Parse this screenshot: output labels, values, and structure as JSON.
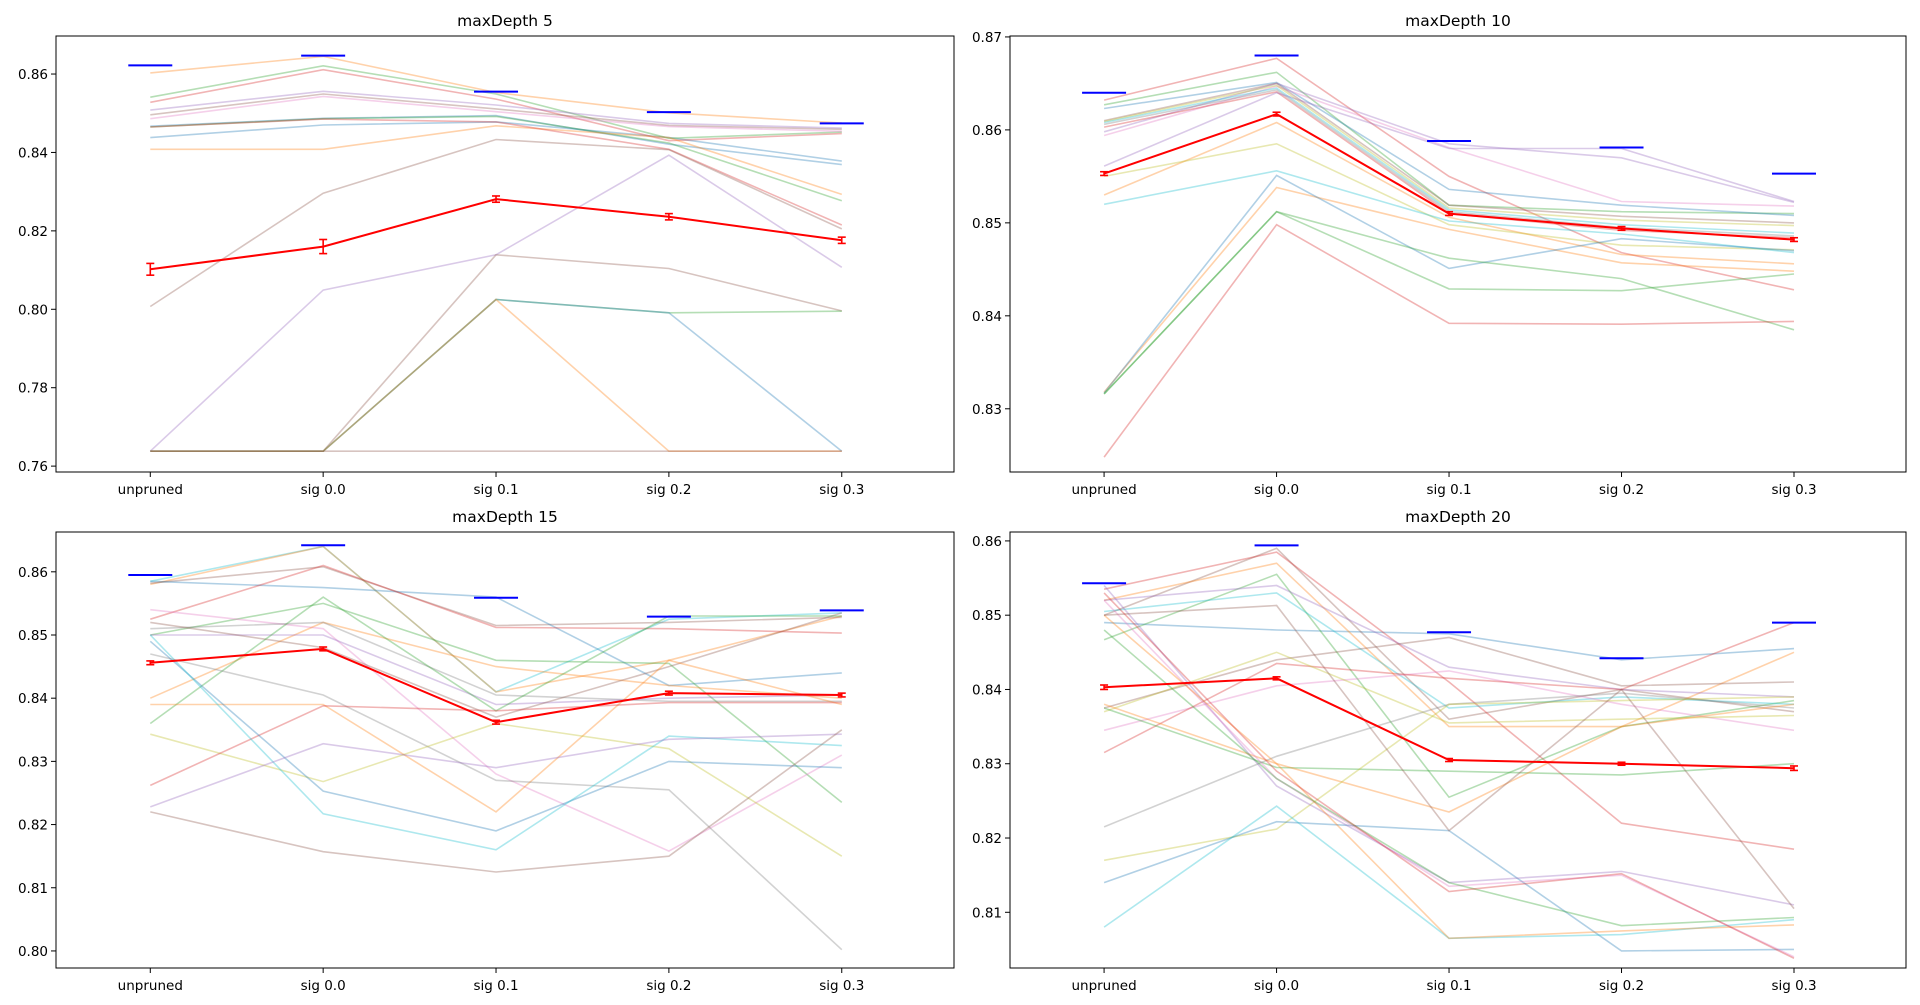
{
  "chart_data": [
    {
      "type": "line",
      "title": "maxDepth 5",
      "categories": [
        "unpruned",
        "sig 0.0",
        "sig 0.1",
        "sig 0.2",
        "sig 0.3"
      ],
      "ylim": [
        0.7585,
        0.8697
      ],
      "yticks": [
        0.76,
        0.78,
        0.8,
        0.82,
        0.84,
        0.86
      ],
      "ytick_labels": [
        "0.76",
        "0.78",
        "0.80",
        "0.82",
        "0.84",
        "0.86"
      ],
      "grid": false,
      "series": [
        {
          "color": "#1f77b4",
          "values": [
            0.8438,
            0.847,
            0.8478,
            0.8438,
            0.8378
          ]
        },
        {
          "color": "#ff7f0e",
          "values": [
            0.8603,
            0.8645,
            0.8553,
            0.8501,
            0.8475
          ]
        },
        {
          "color": "#2ca02c",
          "values": [
            0.8541,
            0.8621,
            0.8549,
            0.8436,
            0.8452
          ]
        },
        {
          "color": "#d62728",
          "values": [
            0.8528,
            0.8611,
            0.8536,
            0.843,
            0.8448
          ]
        },
        {
          "color": "#9467bd",
          "values": [
            0.8508,
            0.8556,
            0.8521,
            0.8474,
            0.8462
          ]
        },
        {
          "color": "#8c564b",
          "values": [
            0.8496,
            0.8549,
            0.8511,
            0.8469,
            0.8459
          ]
        },
        {
          "color": "#e377c2",
          "values": [
            0.8486,
            0.8543,
            0.8504,
            0.8466,
            0.8454
          ]
        },
        {
          "color": "#1f77b4",
          "values": [
            0.8467,
            0.8487,
            0.8494,
            0.8421,
            0.8369
          ]
        },
        {
          "color": "#2ca02c",
          "values": [
            0.8465,
            0.8486,
            0.8492,
            0.8424,
            0.8277
          ]
        },
        {
          "color": "#ff7f0e",
          "values": [
            0.8408,
            0.8408,
            0.8468,
            0.8438,
            0.8293
          ]
        },
        {
          "color": "#d62728",
          "values": [
            0.8465,
            0.8485,
            0.8478,
            0.8408,
            0.8215
          ]
        },
        {
          "color": "#8c564b",
          "values": [
            0.8007,
            0.8296,
            0.8433,
            0.8407,
            0.8205
          ]
        },
        {
          "color": "#9467bd",
          "values": [
            0.7638,
            0.8049,
            0.8139,
            0.8393,
            0.8107
          ]
        },
        {
          "color": "#8c564b",
          "values": [
            0.7638,
            0.7638,
            0.8139,
            0.8104,
            0.7996
          ]
        },
        {
          "color": "#2ca02c",
          "values": [
            0.7638,
            0.7638,
            0.8025,
            0.7991,
            0.7995
          ]
        },
        {
          "color": "#1f77b4",
          "values": [
            0.7638,
            0.7638,
            0.8025,
            0.7991,
            0.7638
          ]
        },
        {
          "color": "#ff7f0e",
          "values": [
            0.7638,
            0.7638,
            0.8025,
            0.7638,
            0.7638
          ]
        },
        {
          "color": "#8c564b",
          "values": [
            0.7638,
            0.7638,
            0.7638,
            0.7638,
            0.7638
          ]
        }
      ],
      "mean": {
        "color": "#ff0000",
        "values": [
          0.8102,
          0.816,
          0.8281,
          0.8236,
          0.8176
        ],
        "errors": [
          0.0015,
          0.0018,
          0.0008,
          0.0008,
          0.0008
        ]
      },
      "best": {
        "color": "#0000ff",
        "values": [
          0.8622,
          0.8647,
          0.8555,
          0.8503,
          0.8474
        ]
      }
    },
    {
      "type": "line",
      "title": "maxDepth 10",
      "categories": [
        "unpruned",
        "sig 0.0",
        "sig 0.1",
        "sig 0.2",
        "sig 0.3"
      ],
      "ylim": [
        0.8232,
        0.8701
      ],
      "yticks": [
        0.83,
        0.84,
        0.85,
        0.86,
        0.87
      ],
      "ytick_labels": [
        "0.83",
        "0.84",
        "0.85",
        "0.86",
        "0.87"
      ],
      "grid": false,
      "series": [
        {
          "color": "#d62728",
          "values": [
            0.8632,
            0.8677,
            0.855,
            0.8468,
            0.8428
          ]
        },
        {
          "color": "#2ca02c",
          "values": [
            0.8627,
            0.8662,
            0.8519,
            0.8512,
            0.851
          ]
        },
        {
          "color": "#1f77b4",
          "values": [
            0.8623,
            0.8651,
            0.8536,
            0.8519,
            0.8508
          ]
        },
        {
          "color": "#9467bd",
          "values": [
            0.8598,
            0.865,
            0.8585,
            0.857,
            0.8522
          ]
        },
        {
          "color": "#e377c2",
          "values": [
            0.8594,
            0.8647,
            0.8581,
            0.8523,
            0.8518
          ]
        },
        {
          "color": "#8c564b",
          "values": [
            0.861,
            0.865,
            0.8519,
            0.8507,
            0.85
          ]
        },
        {
          "color": "#bcbd22",
          "values": [
            0.8609,
            0.8648,
            0.8516,
            0.8503,
            0.8497
          ]
        },
        {
          "color": "#17becf",
          "values": [
            0.8608,
            0.8645,
            0.8514,
            0.8498,
            0.8489
          ]
        },
        {
          "color": "#7f7f7f",
          "values": [
            0.8606,
            0.8643,
            0.8512,
            0.8495,
            0.8486
          ]
        },
        {
          "color": "#d62728",
          "values": [
            0.8603,
            0.8641,
            0.851,
            0.8492,
            0.8484
          ]
        },
        {
          "color": "#9467bd",
          "values": [
            0.8561,
            0.864,
            0.858,
            0.858,
            0.8523
          ]
        },
        {
          "color": "#ff7f0e",
          "values": [
            0.853,
            0.8608,
            0.8506,
            0.8466,
            0.8456
          ]
        },
        {
          "color": "#bcbd22",
          "values": [
            0.855,
            0.8585,
            0.8498,
            0.8476,
            0.8471
          ]
        },
        {
          "color": "#17becf",
          "values": [
            0.852,
            0.8556,
            0.8502,
            0.8488,
            0.8468
          ]
        },
        {
          "color": "#ff7f0e",
          "values": [
            0.8318,
            0.8538,
            0.8493,
            0.8457,
            0.8448
          ]
        },
        {
          "color": "#1f77b4",
          "values": [
            0.8317,
            0.8551,
            0.8451,
            0.8483,
            0.847
          ]
        },
        {
          "color": "#2ca02c",
          "values": [
            0.8316,
            0.8512,
            0.8462,
            0.844,
            0.8385
          ]
        },
        {
          "color": "#2ca02c",
          "values": [
            0.8316,
            0.8512,
            0.8429,
            0.8427,
            0.8445
          ]
        },
        {
          "color": "#d62728",
          "values": [
            0.8248,
            0.8498,
            0.8392,
            0.8391,
            0.8394
          ]
        }
      ],
      "mean": {
        "color": "#ff0000",
        "values": [
          0.8553,
          0.8617,
          0.851,
          0.8494,
          0.8482
        ],
        "errors": [
          0.0002,
          0.0002,
          0.0002,
          0.0002,
          0.0002
        ]
      },
      "best": {
        "color": "#0000ff",
        "values": [
          0.864,
          0.868,
          0.8588,
          0.8581,
          0.8553
        ]
      }
    },
    {
      "type": "line",
      "title": "maxDepth 15",
      "categories": [
        "unpruned",
        "sig 0.0",
        "sig 0.1",
        "sig 0.2",
        "sig 0.3"
      ],
      "ylim": [
        0.7973,
        0.8663
      ],
      "yticks": [
        0.8,
        0.81,
        0.82,
        0.83,
        0.84,
        0.85,
        0.86
      ],
      "ytick_labels": [
        "0.80",
        "0.81",
        "0.82",
        "0.83",
        "0.84",
        "0.85",
        "0.86"
      ],
      "grid": false,
      "series": [
        {
          "color": "#17becf",
          "values": [
            0.8585,
            0.864,
            0.841,
            0.8525,
            0.8535
          ]
        },
        {
          "color": "#ff7f0e",
          "values": [
            0.858,
            0.864,
            0.841,
            0.846,
            0.853
          ]
        },
        {
          "color": "#8c564b",
          "values": [
            0.8582,
            0.8608,
            0.8515,
            0.852,
            0.8528
          ]
        },
        {
          "color": "#1f77b4",
          "values": [
            0.8585,
            0.8575,
            0.856,
            0.842,
            0.844
          ]
        },
        {
          "color": "#d62728",
          "values": [
            0.8525,
            0.861,
            0.8512,
            0.851,
            0.8503
          ]
        },
        {
          "color": "#2ca02c",
          "values": [
            0.85,
            0.855,
            0.846,
            0.8455,
            0.8235
          ]
        },
        {
          "color": "#e377c2",
          "values": [
            0.854,
            0.851,
            0.828,
            0.8158,
            0.831
          ]
        },
        {
          "color": "#ff7f0e",
          "values": [
            0.84,
            0.852,
            0.845,
            0.842,
            0.84
          ]
        },
        {
          "color": "#7f7f7f",
          "values": [
            0.851,
            0.852,
            0.8405,
            0.8395,
            0.8395
          ]
        },
        {
          "color": "#9467bd",
          "values": [
            0.85,
            0.85,
            0.839,
            0.84,
            0.8405
          ]
        },
        {
          "color": "#8c564b",
          "values": [
            0.852,
            0.848,
            0.837,
            0.845,
            0.8535
          ]
        },
        {
          "color": "#2ca02c",
          "values": [
            0.836,
            0.856,
            0.838,
            0.853,
            0.853
          ]
        },
        {
          "color": "#ff7f0e",
          "values": [
            0.839,
            0.839,
            0.822,
            0.846,
            0.839
          ]
        },
        {
          "color": "#7f7f7f",
          "values": [
            0.847,
            0.8405,
            0.827,
            0.8255,
            0.8002
          ]
        },
        {
          "color": "#bcbd22",
          "values": [
            0.8343,
            0.8268,
            0.836,
            0.832,
            0.815
          ]
        },
        {
          "color": "#d62728",
          "values": [
            0.8262,
            0.8388,
            0.838,
            0.8393,
            0.8393
          ]
        },
        {
          "color": "#1f77b4",
          "values": [
            0.849,
            0.8253,
            0.819,
            0.83,
            0.829
          ]
        },
        {
          "color": "#17becf",
          "values": [
            0.85,
            0.8217,
            0.816,
            0.834,
            0.8325
          ]
        },
        {
          "color": "#9467bd",
          "values": [
            0.8228,
            0.8328,
            0.829,
            0.8335,
            0.8343
          ]
        },
        {
          "color": "#8c564b",
          "values": [
            0.822,
            0.8157,
            0.8125,
            0.815,
            0.835
          ]
        }
      ],
      "mean": {
        "color": "#ff0000",
        "values": [
          0.8456,
          0.8478,
          0.8362,
          0.8408,
          0.8405
        ],
        "errors": [
          0.0003,
          0.0003,
          0.0003,
          0.0003,
          0.0003
        ]
      },
      "best": {
        "color": "#0000ff",
        "values": [
          0.8595,
          0.8642,
          0.8559,
          0.8529,
          0.8539
        ]
      }
    },
    {
      "type": "line",
      "title": "maxDepth 20",
      "categories": [
        "unpruned",
        "sig 0.0",
        "sig 0.1",
        "sig 0.2",
        "sig 0.3"
      ],
      "ylim": [
        0.8025,
        0.8612
      ],
      "yticks": [
        0.81,
        0.82,
        0.83,
        0.84,
        0.85,
        0.86
      ],
      "ytick_labels": [
        "0.81",
        "0.82",
        "0.83",
        "0.84",
        "0.85",
        "0.86"
      ],
      "grid": false,
      "series": [
        {
          "color": "#1f77b4",
          "values": [
            0.849,
            0.848,
            0.8475,
            0.844,
            0.8455
          ]
        },
        {
          "color": "#8c564b",
          "values": [
            0.85,
            0.859,
            0.836,
            0.84,
            0.837
          ]
        },
        {
          "color": "#d62728",
          "values": [
            0.8535,
            0.8585,
            0.841,
            0.822,
            0.8185
          ]
        },
        {
          "color": "#2ca02c",
          "values": [
            0.8467,
            0.8555,
            0.8255,
            0.835,
            0.8385
          ]
        },
        {
          "color": "#ff7f0e",
          "values": [
            0.852,
            0.857,
            0.835,
            0.835,
            0.845
          ]
        },
        {
          "color": "#17becf",
          "values": [
            0.8505,
            0.853,
            0.8375,
            0.839,
            0.838
          ]
        },
        {
          "color": "#9467bd",
          "values": [
            0.852,
            0.854,
            0.843,
            0.84,
            0.839
          ]
        },
        {
          "color": "#e377c2",
          "values": [
            0.8345,
            0.8405,
            0.8425,
            0.838,
            0.8345
          ]
        },
        {
          "color": "#d62728",
          "values": [
            0.8315,
            0.8435,
            0.8415,
            0.84,
            0.849
          ]
        },
        {
          "color": "#8c564b",
          "values": [
            0.8375,
            0.844,
            0.847,
            0.8405,
            0.841
          ]
        },
        {
          "color": "#bcbd22",
          "values": [
            0.837,
            0.845,
            0.8355,
            0.836,
            0.8365
          ]
        },
        {
          "color": "#2ca02c",
          "values": [
            0.8375,
            0.8295,
            0.829,
            0.8285,
            0.83
          ]
        },
        {
          "color": "#7f7f7f",
          "values": [
            0.8215,
            0.831,
            0.838,
            0.8395,
            0.8375
          ]
        },
        {
          "color": "#ff7f0e",
          "values": [
            0.838,
            0.83,
            0.8235,
            0.835,
            0.838
          ]
        },
        {
          "color": "#bcbd22",
          "values": [
            0.817,
            0.8212,
            0.838,
            0.8385,
            0.839
          ]
        },
        {
          "color": "#1f77b4",
          "values": [
            0.814,
            0.8222,
            0.821,
            0.8048,
            0.805
          ]
        },
        {
          "color": "#17becf",
          "values": [
            0.808,
            0.8243,
            0.8065,
            0.807,
            0.809
          ]
        },
        {
          "color": "#9467bd",
          "values": [
            0.854,
            0.827,
            0.814,
            0.8155,
            0.811
          ]
        },
        {
          "color": "#e377c2",
          "values": [
            0.852,
            0.828,
            0.8135,
            0.815,
            0.804
          ]
        },
        {
          "color": "#ff7f0e",
          "values": [
            0.85,
            0.83,
            0.8065,
            0.8075,
            0.8083
          ]
        },
        {
          "color": "#2ca02c",
          "values": [
            0.848,
            0.828,
            0.814,
            0.8082,
            0.8093
          ]
        },
        {
          "color": "#8c564b",
          "values": [
            0.85,
            0.8513,
            0.821,
            0.84,
            0.8105
          ]
        },
        {
          "color": "#d62728",
          "values": [
            0.853,
            0.829,
            0.8128,
            0.8152,
            0.8038
          ]
        }
      ],
      "mean": {
        "color": "#ff0000",
        "values": [
          0.8403,
          0.8415,
          0.8305,
          0.83,
          0.8294
        ],
        "errors": [
          0.0003,
          0.0002,
          0.0002,
          0.0002,
          0.0003
        ]
      },
      "best": {
        "color": "#0000ff",
        "values": [
          0.8543,
          0.8594,
          0.8477,
          0.8442,
          0.849
        ]
      }
    }
  ]
}
